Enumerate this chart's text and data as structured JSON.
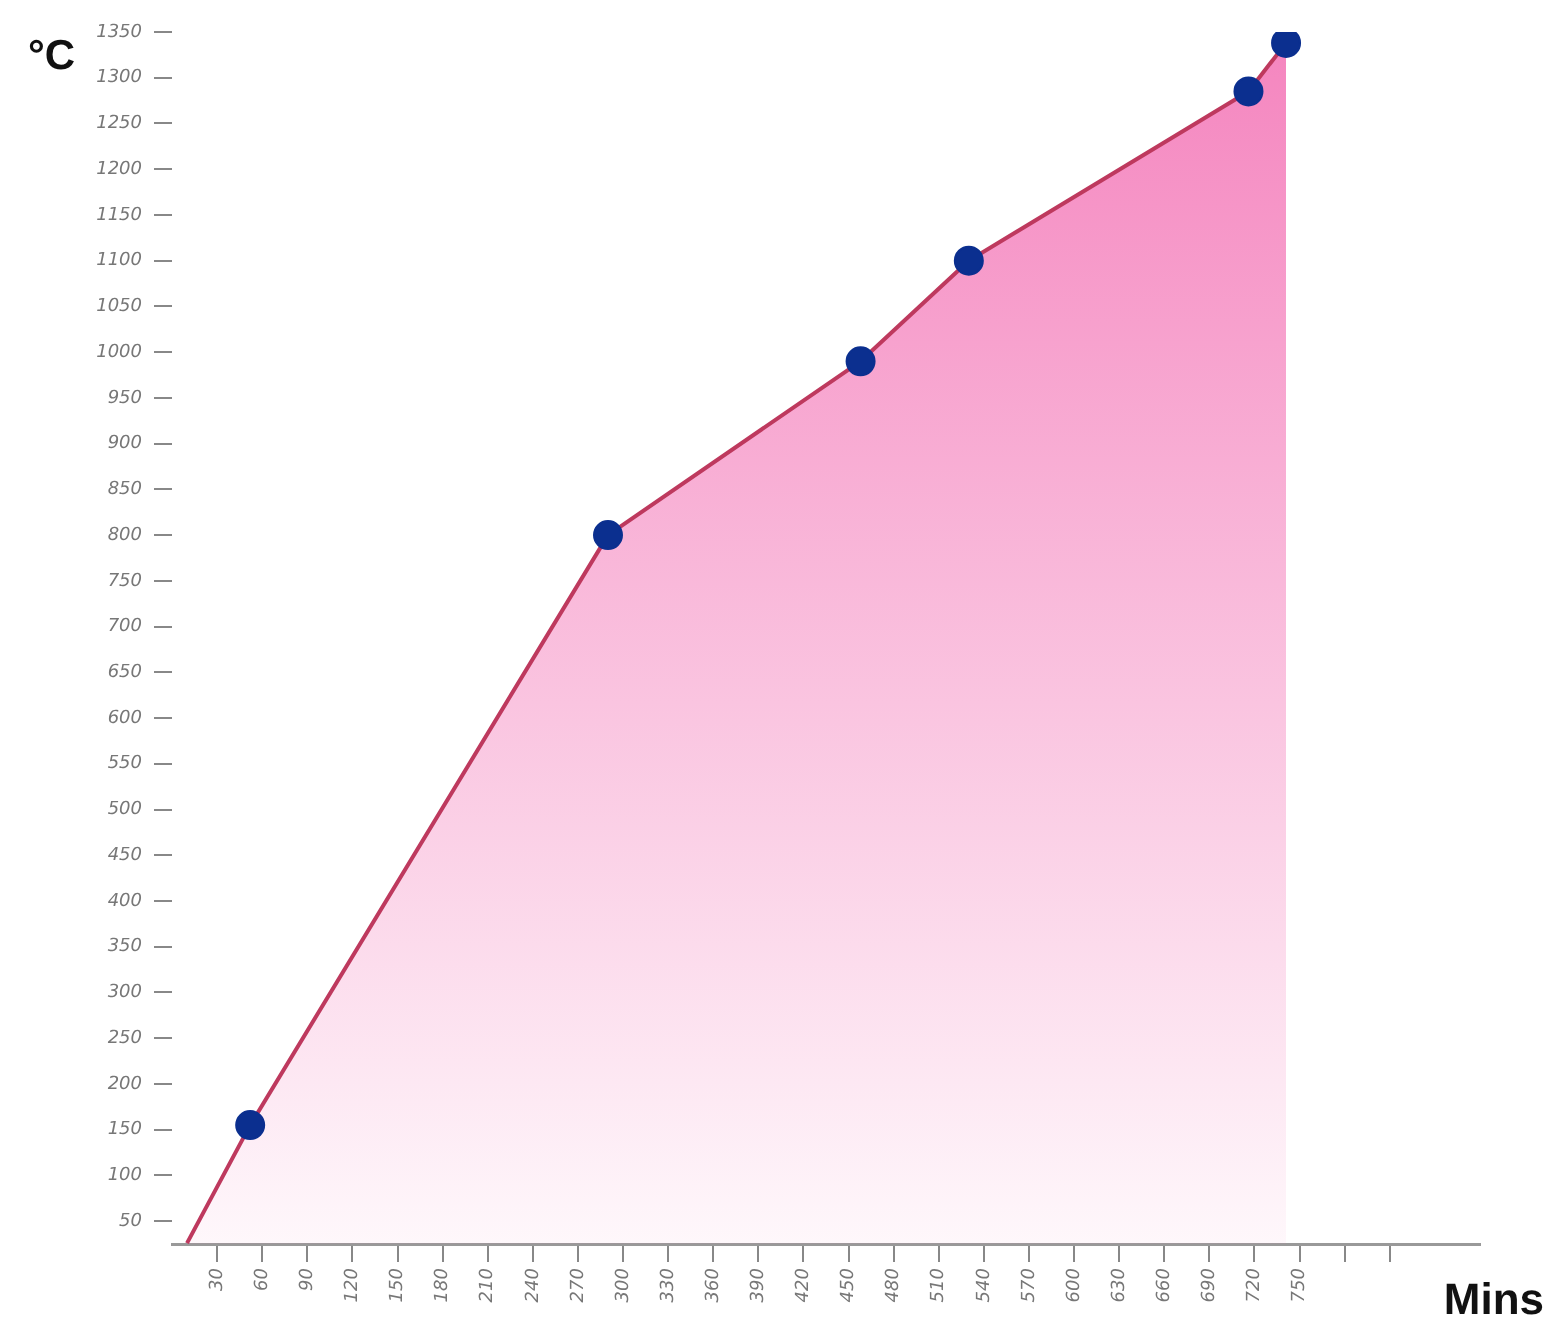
{
  "chart_data": {
    "type": "area",
    "xlabel": "Mins",
    "ylabel": "°C",
    "xlim": [
      0,
      870
    ],
    "ylim": [
      25,
      1350
    ],
    "xticks": [
      30,
      60,
      90,
      120,
      150,
      180,
      210,
      240,
      270,
      300,
      330,
      360,
      390,
      420,
      450,
      480,
      510,
      540,
      570,
      600,
      630,
      660,
      690,
      720,
      750,
      {
        "value": 780,
        "label": null
      },
      {
        "value": 810,
        "label": null
      }
    ],
    "yticks": [
      50,
      100,
      150,
      200,
      250,
      300,
      350,
      400,
      450,
      500,
      550,
      600,
      650,
      700,
      750,
      800,
      850,
      900,
      950,
      1000,
      1050,
      1100,
      1150,
      1200,
      1250,
      1300,
      1350
    ],
    "grid": false,
    "legend": false,
    "series": [
      {
        "color": "#f47ebb",
        "x": [
          10,
          52,
          290,
          458,
          530,
          716,
          741
        ],
        "values": [
          26,
          155,
          800,
          990,
          1100,
          1285,
          1338
        ],
        "marker": "none"
      },
      {
        "type": "scatter",
        "color": "#0b2f8f",
        "x": [
          52,
          290,
          458,
          530,
          716,
          741
        ],
        "values": [
          155,
          800,
          990,
          1100,
          1285,
          1338
        ],
        "marker": "circle"
      }
    ]
  }
}
